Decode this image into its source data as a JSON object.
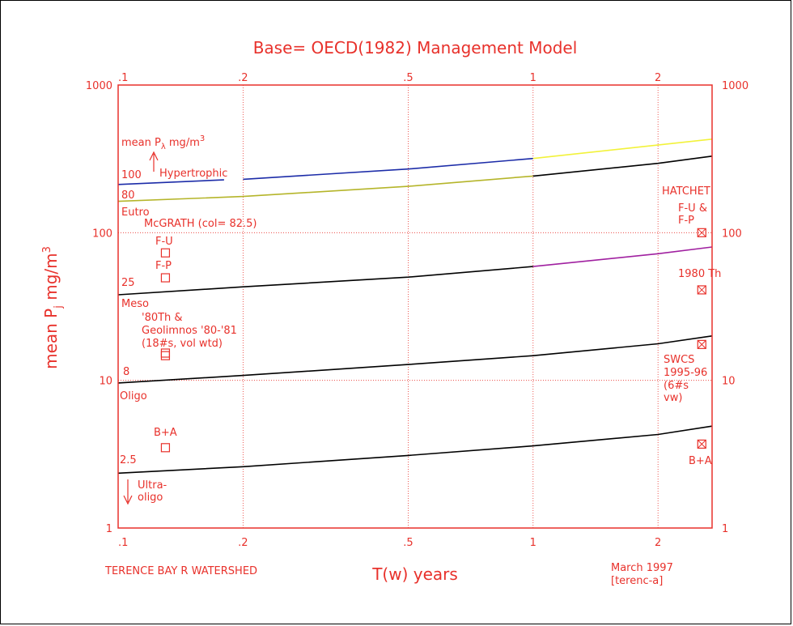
{
  "chart_data": {
    "type": "line",
    "title": "Base= OECD(1982) Management Model",
    "xlabel": "T(w) years",
    "ylabel": "mean P",
    "ylabel_sub": "j",
    "ylabel_unit": " mg/m",
    "ylabel_sup": "3",
    "x_scale": "log",
    "y_scale": "log",
    "xlim": [
      0.1,
      2.7
    ],
    "ylim": [
      1,
      1000
    ],
    "x_ticks": [
      {
        "value": 0.1,
        "label": ".1"
      },
      {
        "value": 0.2,
        "label": ".2"
      },
      {
        "value": 0.5,
        "label": ".5"
      },
      {
        "value": 1,
        "label": "1"
      },
      {
        "value": 2,
        "label": "2"
      }
    ],
    "y_ticks": [
      {
        "value": 1,
        "label": "1"
      },
      {
        "value": 10,
        "label": "10"
      },
      {
        "value": 100,
        "label": "100"
      },
      {
        "value": 1000,
        "label": "1000"
      }
    ],
    "series": [
      {
        "color": "#1c2ca8",
        "points": [
          [
            0.1,
            212
          ],
          [
            0.18,
            228
          ],
          [
            0.2,
            230
          ],
          [
            0.5,
            270
          ],
          [
            1,
            318
          ]
        ],
        "gap_after_index": 1
      },
      {
        "color": "#f2f23a",
        "points": [
          [
            1,
            318
          ],
          [
            2.7,
            430
          ]
        ]
      },
      {
        "color": "#b5b52a",
        "points": [
          [
            0.1,
            163
          ],
          [
            0.2,
            176
          ],
          [
            0.5,
            206
          ],
          [
            1,
            242
          ]
        ]
      },
      {
        "color": "#000000",
        "points": [
          [
            1,
            242
          ],
          [
            2,
            295
          ],
          [
            2.7,
            330
          ]
        ]
      },
      {
        "color": "#000000",
        "points": [
          [
            0.1,
            38
          ],
          [
            0.2,
            43
          ],
          [
            0.5,
            50
          ],
          [
            1,
            59
          ]
        ]
      },
      {
        "color": "#a020a0",
        "points": [
          [
            1,
            59
          ],
          [
            2,
            72
          ],
          [
            2.7,
            80
          ]
        ]
      },
      {
        "color": "#000000",
        "points": [
          [
            0.1,
            9.6
          ],
          [
            0.2,
            10.8
          ],
          [
            0.5,
            12.8
          ],
          [
            1,
            14.7
          ],
          [
            2,
            17.7
          ],
          [
            2.7,
            20
          ]
        ]
      },
      {
        "color": "#000000",
        "points": [
          [
            0.1,
            2.35
          ],
          [
            0.2,
            2.6
          ],
          [
            0.5,
            3.1
          ],
          [
            1,
            3.6
          ],
          [
            2,
            4.3
          ],
          [
            2.7,
            4.9
          ]
        ]
      }
    ],
    "markers_open": [
      {
        "x": 0.13,
        "y": 73
      },
      {
        "x": 0.13,
        "y": 49.5
      },
      {
        "x": 0.13,
        "y": 15.3
      },
      {
        "x": 0.13,
        "y": 14.7
      },
      {
        "x": 0.13,
        "y": 3.5
      }
    ],
    "markers_crossed": [
      {
        "x": 2.55,
        "y": 100
      },
      {
        "x": 2.55,
        "y": 41
      },
      {
        "x": 2.55,
        "y": 17.5
      },
      {
        "x": 2.55,
        "y": 3.7
      }
    ],
    "annotations": {
      "mean_pl": "mean P",
      "mean_pl_sub": "λ",
      "mean_pl_unit": " mg/m",
      "mean_pl_sup": "3",
      "n100": "100",
      "hypertrophic": "Hypertrophic",
      "n80": "80",
      "eutro": "Eutro",
      "mcgrath": "McGRATH (col= 82.5)",
      "fu": "F-U",
      "fp": "F-P",
      "n25": "25",
      "meso": "Meso",
      "th80_1": "'80Th &",
      "th80_2": "Geolimnos '80-'81",
      "th80_3": "(18#s, vol wtd)",
      "n8": "8",
      "oligo": "Oligo",
      "ba_left": "B+A",
      "n25b": "2.5",
      "ultra1": "Ultra-",
      "ultra2": "oligo",
      "hatchet": "HATCHET",
      "fu_fp_1": "F-U &",
      "fu_fp_2": "F-P",
      "th1980": "1980 Th",
      "swcs1": "SWCS",
      "swcs2": "1995-96",
      "swcs3": "(6#s",
      "swcs4": "vw)",
      "ba_right": "B+A",
      "footer_left": "TERENCE BAY R WATERSHED",
      "footer_right1": "March 1997",
      "footer_right2": "[terenc-a]"
    }
  }
}
